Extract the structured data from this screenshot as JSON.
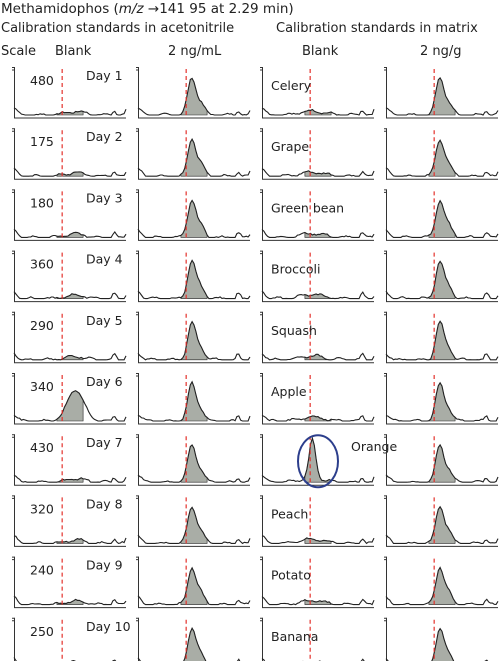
{
  "title_compound": "Methamidophos",
  "title_transition": "m/z",
  "title_rest": "→141 95 at 2.29 min)",
  "header_left": "Calibration standards in acetonitrile",
  "header_right": "Calibration standards in matrix",
  "col_headers": [
    "Scale",
    "Blank",
    "2 ng/mL",
    "Blank",
    "2 ng/g"
  ],
  "colors": {
    "peak_fill": "#a9ada6",
    "trace": "#222222",
    "retention_marker": "#e4312b",
    "highlight_ellipse": "#2c3e8c"
  },
  "chart_data": {
    "type": "chromatogram_grid",
    "retention_time_min": 2.29,
    "columns": [
      "Blank (acetonitrile)",
      "2 ng/mL (acetonitrile)",
      "Blank (matrix)",
      "2 ng/g (matrix)"
    ],
    "rows": [
      {
        "scale": 480,
        "day": "Day 1",
        "matrix": "Celery"
      },
      {
        "scale": 175,
        "day": "Day 2",
        "matrix": "Grape"
      },
      {
        "scale": 180,
        "day": "Day 3",
        "matrix": "Green bean"
      },
      {
        "scale": 360,
        "day": "Day 4",
        "matrix": "Broccoli"
      },
      {
        "scale": 290,
        "day": "Day 5",
        "matrix": "Squash"
      },
      {
        "scale": 340,
        "day": "Day 6",
        "matrix": "Apple"
      },
      {
        "scale": 430,
        "day": "Day 7",
        "matrix": "Orange"
      },
      {
        "scale": 320,
        "day": "Day 8",
        "matrix": "Peach"
      },
      {
        "scale": 240,
        "day": "Day 9",
        "matrix": "Potato"
      },
      {
        "scale": 250,
        "day": "Day 10",
        "matrix": "Banana"
      }
    ],
    "highlighted": {
      "row": "Orange",
      "column": "Blank (matrix)"
    }
  }
}
